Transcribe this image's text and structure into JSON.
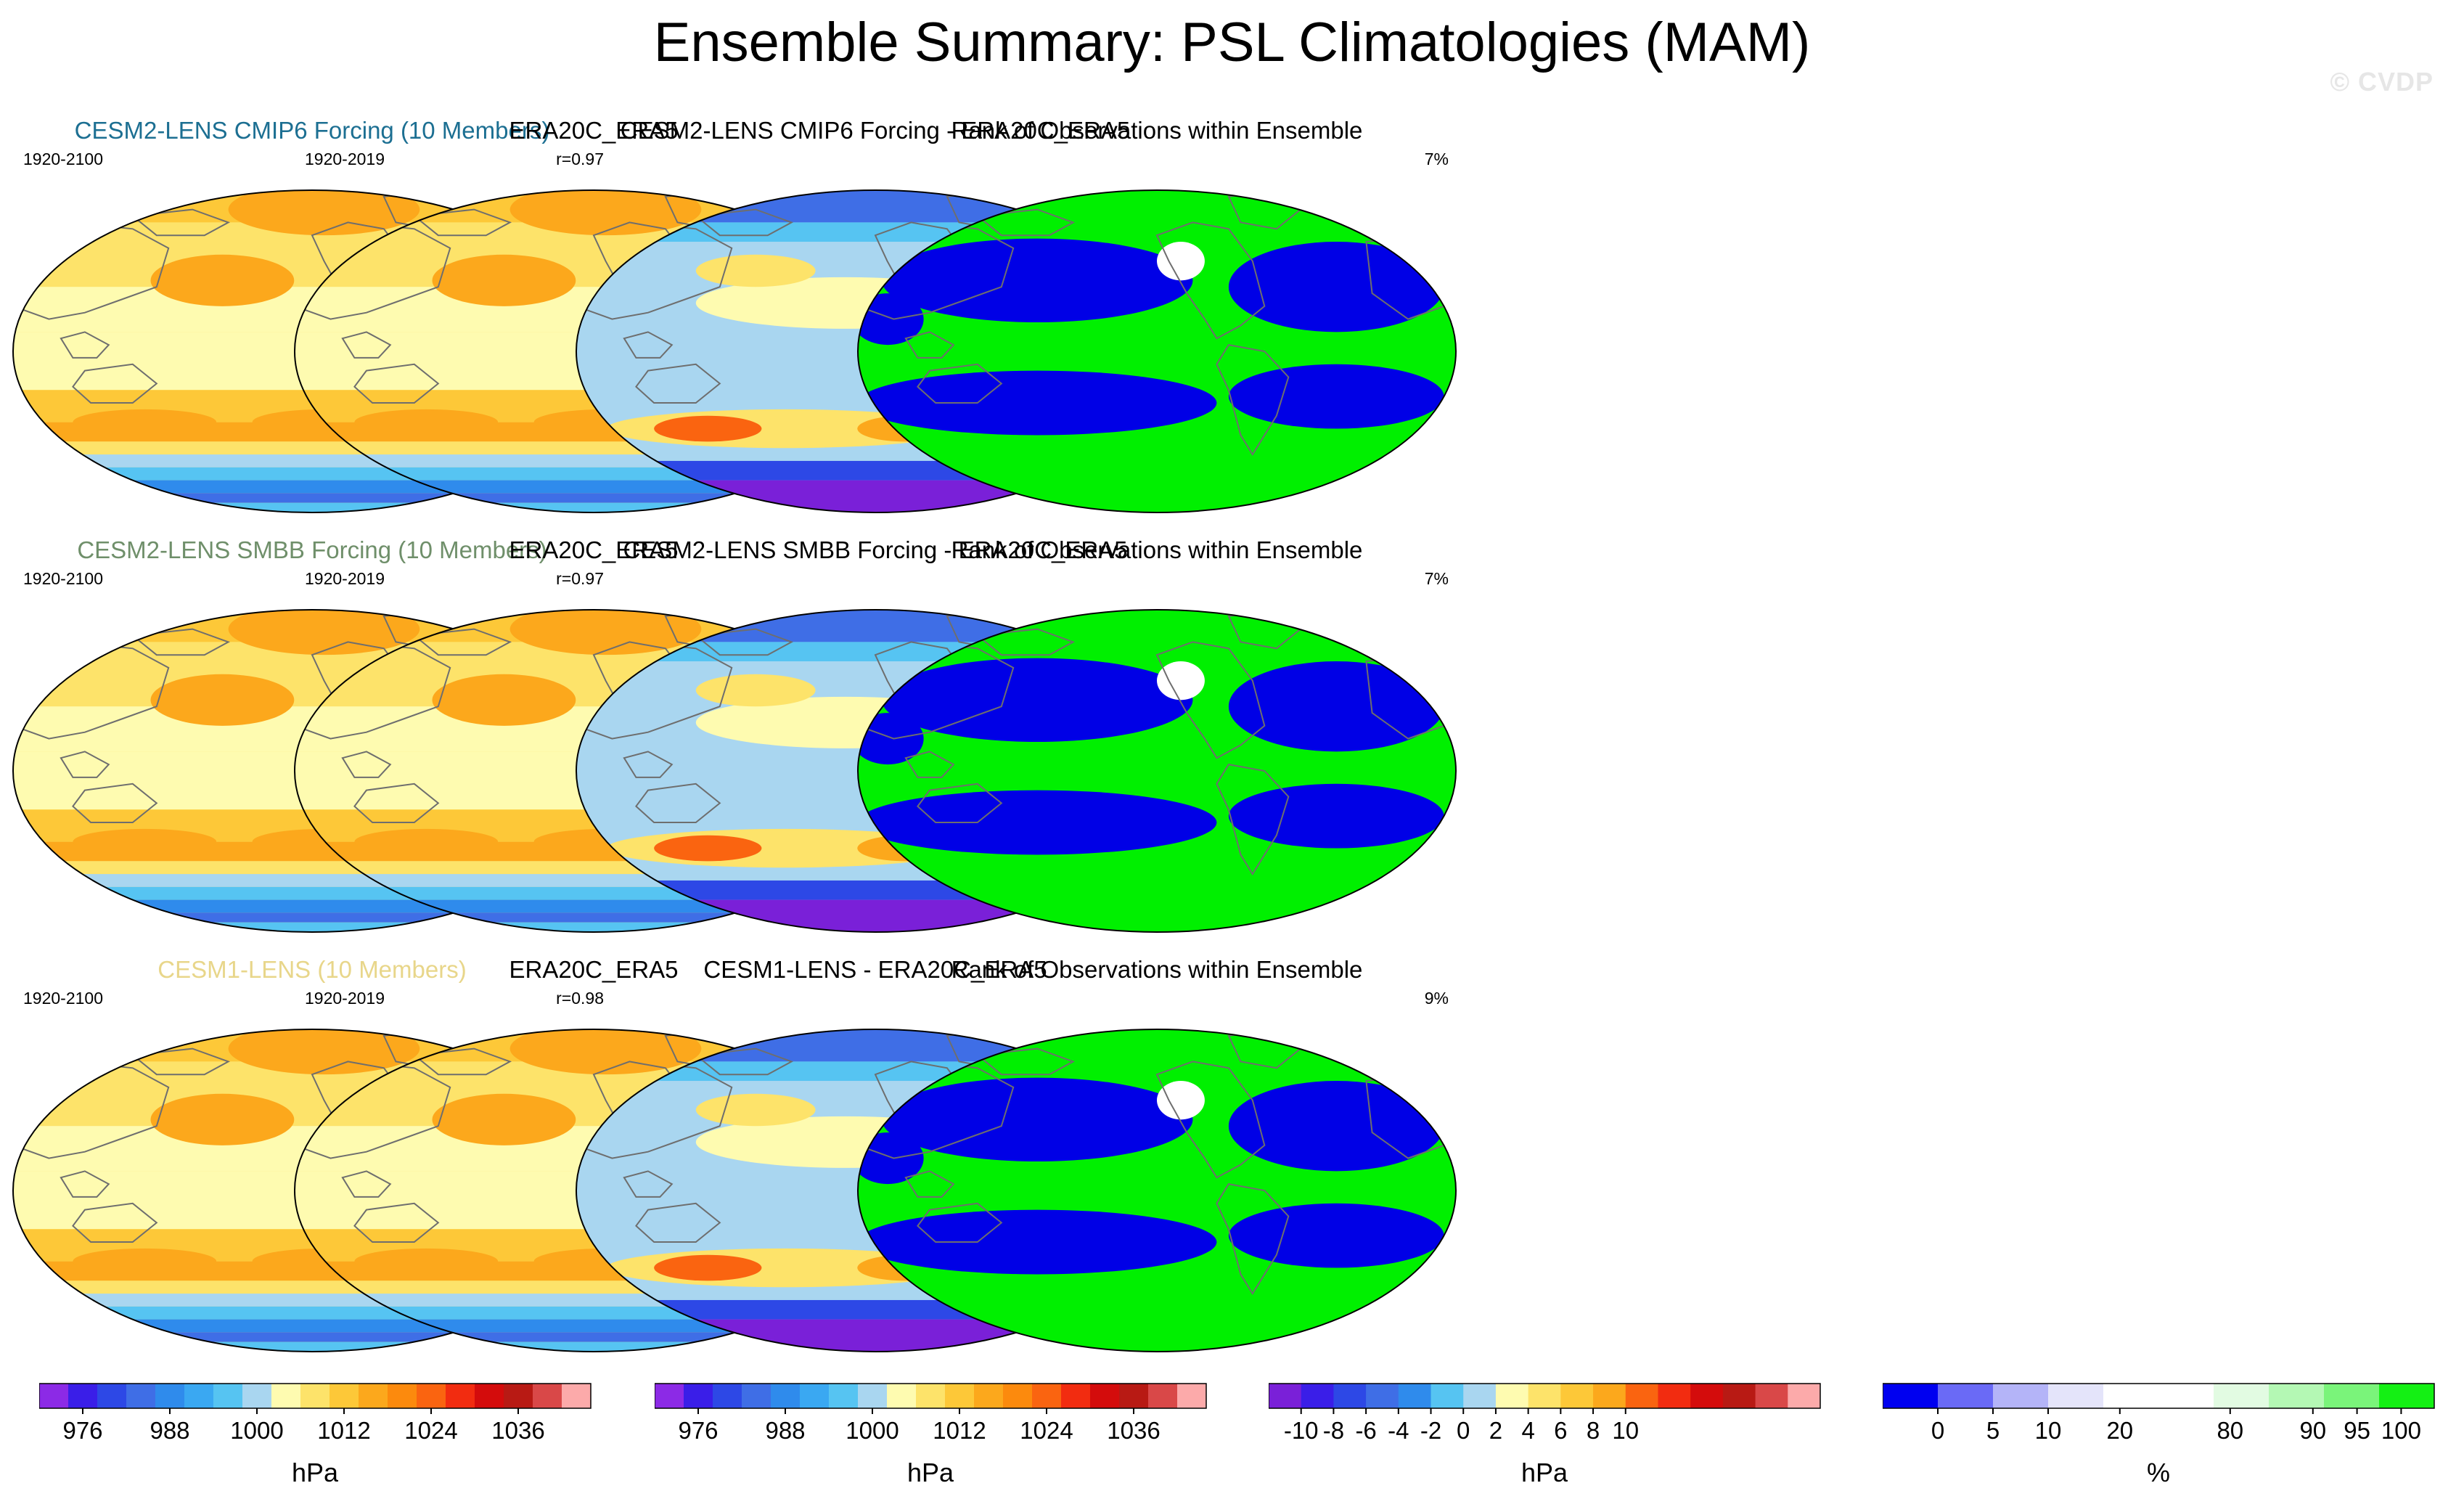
{
  "title": "Ensemble Summary: PSL Climatologies (MAM)",
  "copyright": "© CVDP",
  "colors": {
    "row_title_1": "#1c6f92",
    "row_title_2": "#6f8f6a",
    "row_title_3": "#e8d68a",
    "land_outline": "#6e6e6e",
    "rank_low": "#0000e6",
    "rank_high": "#00f000"
  },
  "panels": [
    {
      "title": "CESM2-LENS CMIP6 Forcing (10 Members)",
      "left": "1920-2100",
      "right": "r=0.97",
      "kind": "clim"
    },
    {
      "title": "ERA20C_ERA5",
      "left": "1920-2019",
      "right": "",
      "kind": "clim"
    },
    {
      "title": "CESM2-LENS CMIP6 Forcing - ERA20C_ERA5",
      "left": "",
      "right": "",
      "kind": "diff"
    },
    {
      "title": "Rank of Observations within Ensemble",
      "left": "",
      "right": "7%",
      "kind": "rank"
    },
    {
      "title": "CESM2-LENS SMBB Forcing (10 Members)",
      "left": "1920-2100",
      "right": "r=0.97",
      "kind": "clim"
    },
    {
      "title": "ERA20C_ERA5",
      "left": "1920-2019",
      "right": "",
      "kind": "clim"
    },
    {
      "title": "CESM2-LENS SMBB Forcing - ERA20C_ERA5",
      "left": "",
      "right": "",
      "kind": "diff"
    },
    {
      "title": "Rank of Observations within Ensemble",
      "left": "",
      "right": "7%",
      "kind": "rank"
    },
    {
      "title": "CESM1-LENS (10 Members)",
      "left": "1920-2100",
      "right": "r=0.98",
      "kind": "clim"
    },
    {
      "title": "ERA20C_ERA5",
      "left": "1920-2019",
      "right": "",
      "kind": "clim"
    },
    {
      "title": "CESM1-LENS - ERA20C_ERA5",
      "left": "",
      "right": "",
      "kind": "diff"
    },
    {
      "title": "Rank of Observations within Ensemble",
      "left": "",
      "right": "9%",
      "kind": "rank"
    }
  ],
  "colorbars": [
    {
      "unit": "hPa",
      "labels": [
        "976",
        "988",
        "1000",
        "1012",
        "1024",
        "1036"
      ],
      "label_box_index": [
        1.5,
        4.5,
        7.5,
        10.5,
        13.5,
        16.5
      ],
      "colors": [
        "#8c2ae6",
        "#3a1ee8",
        "#2d48e6",
        "#3f6ee6",
        "#2f8bec",
        "#3aa8f2",
        "#56c4f2",
        "#a9d6f0",
        "#fefbb0",
        "#fde36a",
        "#fdc838",
        "#fca81c",
        "#fc8a0d",
        "#fa6410",
        "#f22c10",
        "#d40c0c",
        "#b81a14",
        "#d94848",
        "#fcaaaa"
      ]
    },
    {
      "unit": "hPa",
      "labels": [
        "976",
        "988",
        "1000",
        "1012",
        "1024",
        "1036"
      ],
      "label_box_index": [
        1.5,
        4.5,
        7.5,
        10.5,
        13.5,
        16.5
      ],
      "colors": [
        "#8c2ae6",
        "#3a1ee8",
        "#2d48e6",
        "#3f6ee6",
        "#2f8bec",
        "#3aa8f2",
        "#56c4f2",
        "#a9d6f0",
        "#fefbb0",
        "#fde36a",
        "#fdc838",
        "#fca81c",
        "#fc8a0d",
        "#fa6410",
        "#f22c10",
        "#d40c0c",
        "#b81a14",
        "#d94848",
        "#fcaaaa"
      ]
    },
    {
      "unit": "hPa",
      "labels": [
        "-10",
        "-8",
        "-6",
        "-4",
        "-2",
        "0",
        "2",
        "4",
        "6",
        "8",
        "10"
      ],
      "label_box_index": [
        1,
        2,
        3,
        4,
        5,
        6,
        7,
        8,
        9,
        10,
        11
      ],
      "colors": [
        "#7a20d8",
        "#3a1ee8",
        "#2d48e6",
        "#3f6ee6",
        "#2f8bec",
        "#56c4f2",
        "#a9d6f0",
        "#fefbb0",
        "#fde36a",
        "#fdc838",
        "#fca81c",
        "#fa6410",
        "#f22c10",
        "#d40c0c",
        "#b81a14",
        "#d94848",
        "#fcaaaa"
      ]
    },
    {
      "unit": "%",
      "labels": [
        "0",
        "5",
        "10",
        "20",
        "80",
        "90",
        "95",
        "100"
      ],
      "label_box_index": [
        1,
        2,
        3,
        4.3,
        6.3,
        7.8,
        8.6,
        9.4
      ],
      "colors": [
        "#0000f0",
        "#6a6af6",
        "#b4b4f8",
        "#e4e4fa",
        "#ffffff",
        "#ffffff",
        "#e2fbe2",
        "#b4f8b4",
        "#7af47a",
        "#14f014"
      ]
    }
  ]
}
